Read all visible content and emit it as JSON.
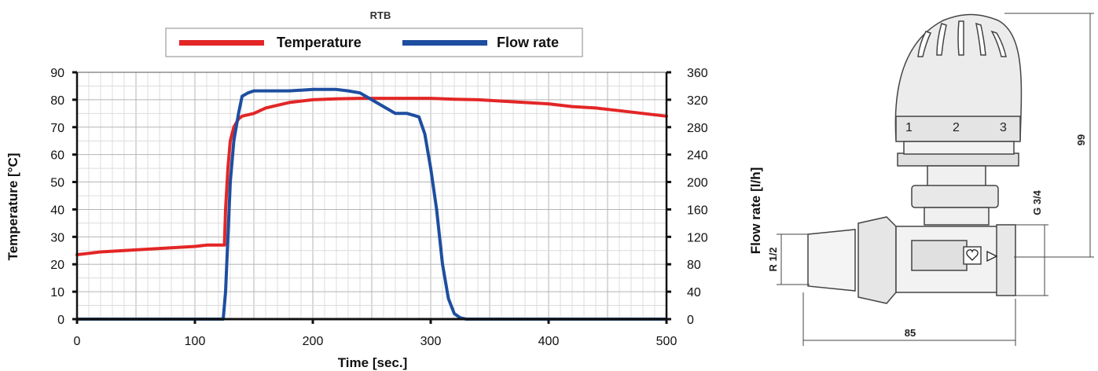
{
  "chart_data": {
    "type": "line",
    "title": "RTB",
    "xlabel": "Time [sec.]",
    "ylabel_left": "Temperature [°C]",
    "ylabel_right": "Flow rate [l/h]",
    "xlim": [
      0,
      500
    ],
    "ylim_left": [
      0,
      90
    ],
    "ylim_right": [
      0,
      360
    ],
    "x_ticks": [
      0,
      100,
      200,
      300,
      400,
      500
    ],
    "y_ticks_left": [
      0,
      10,
      20,
      30,
      40,
      50,
      60,
      70,
      80,
      90
    ],
    "y_ticks_right": [
      0,
      40,
      80,
      120,
      160,
      200,
      240,
      280,
      320,
      360
    ],
    "grid": true,
    "legend_position": "top-center",
    "series": [
      {
        "name": "Temperature",
        "axis": "left",
        "color": "#e32626",
        "x": [
          0,
          10,
          20,
          40,
          60,
          80,
          100,
          110,
          120,
          125,
          126,
          128,
          130,
          133,
          137,
          140,
          150,
          160,
          170,
          180,
          190,
          200,
          220,
          240,
          260,
          280,
          300,
          320,
          340,
          360,
          380,
          400,
          420,
          440,
          460,
          480,
          500
        ],
        "values": [
          23.5,
          24,
          24.5,
          25,
          25.5,
          26,
          26.5,
          27,
          27,
          27,
          40,
          55,
          65,
          70,
          73,
          74,
          75,
          77,
          78,
          79,
          79.5,
          80,
          80.3,
          80.5,
          80.5,
          80.5,
          80.5,
          80.2,
          80,
          79.5,
          79,
          78.5,
          77.5,
          77,
          76,
          75,
          74
        ]
      },
      {
        "name": "Flow rate",
        "axis": "right",
        "color": "#1e4ea0",
        "x": [
          0,
          124,
          126,
          128,
          130,
          133,
          137,
          140,
          145,
          150,
          160,
          180,
          200,
          220,
          230,
          240,
          250,
          260,
          270,
          280,
          290,
          295,
          300,
          305,
          310,
          315,
          320,
          325,
          330,
          500
        ],
        "values": [
          0,
          0,
          40,
          120,
          200,
          260,
          300,
          325,
          330,
          333,
          333,
          333,
          335,
          335,
          333,
          330,
          320,
          310,
          300,
          300,
          295,
          270,
          220,
          160,
          80,
          30,
          8,
          2,
          0,
          0
        ]
      }
    ]
  },
  "drawing": {
    "dial_labels": [
      "1",
      "2",
      "3"
    ],
    "dim_height": "99",
    "dim_thread_top": "G 3/4",
    "dim_thread_left": "R 1/2",
    "dim_width": "85"
  }
}
